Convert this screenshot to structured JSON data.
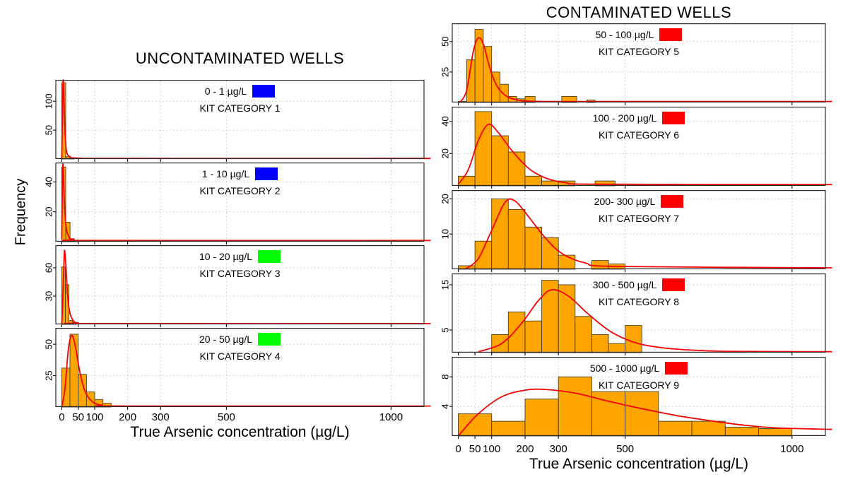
{
  "figure": {
    "left_column": {
      "title": "UNCONTAMINATED WELLS"
    },
    "right_column": {
      "title": "CONTAMINATED WELLS"
    },
    "x_axis_label": "True Arsenic concentration (µg/L)",
    "y_axis_label": "Frequency"
  },
  "colors": {
    "bar_fill": "#FFA500",
    "bar_border": "#454026",
    "curve": "#F40000",
    "grid": "#C3C3C3",
    "panel_border": "#2b2b2b",
    "axis_tick": "#1a1a1a",
    "legend_blue": "#0000FF",
    "legend_green": "#00FF00",
    "legend_red": "#FF0000"
  },
  "x_axis": {
    "ticks": [
      0,
      50,
      100,
      200,
      300,
      500,
      1000
    ]
  },
  "chart_data": [
    {
      "type": "histogram-with-density-curve",
      "column": "left",
      "panel": 1,
      "legend": {
        "range": "0 - 1 µg/L",
        "kit": "KIT CATEGORY 1",
        "color": "#0000FF"
      },
      "y_ticks": [
        50,
        100
      ],
      "ylim": 137,
      "bars": [
        [
          0,
          12,
          132
        ],
        [
          12,
          25,
          4
        ],
        [
          25,
          38,
          1
        ]
      ],
      "curve": [
        [
          0,
          0
        ],
        [
          3,
          110
        ],
        [
          5,
          134
        ],
        [
          9,
          60
        ],
        [
          14,
          15
        ],
        [
          25,
          4
        ],
        [
          50,
          1.5
        ],
        [
          200,
          1
        ],
        [
          1120,
          1
        ]
      ]
    },
    {
      "type": "histogram-with-density-curve",
      "column": "left",
      "panel": 2,
      "legend": {
        "range": "1 - 10 µg/L",
        "kit": "KIT CATEGORY 2",
        "color": "#0000FF"
      },
      "y_ticks": [
        20,
        40
      ],
      "ylim": 53,
      "bars": [
        [
          0,
          12,
          50
        ],
        [
          12,
          25,
          13
        ],
        [
          25,
          38,
          2
        ],
        [
          38,
          50,
          1
        ]
      ],
      "curve": [
        [
          0,
          2
        ],
        [
          2,
          38
        ],
        [
          4,
          52
        ],
        [
          7,
          32
        ],
        [
          12,
          12
        ],
        [
          20,
          4
        ],
        [
          35,
          1.5
        ],
        [
          100,
          0.8
        ],
        [
          1120,
          0.8
        ]
      ]
    },
    {
      "type": "histogram-with-density-curve",
      "column": "left",
      "panel": 3,
      "legend": {
        "range": "10 - 20 µg/L",
        "kit": "KIT CATEGORY 3",
        "color": "#00FF00"
      },
      "y_ticks": [
        30,
        60
      ],
      "ylim": 84,
      "bars": [
        [
          0,
          11,
          61
        ],
        [
          11,
          22,
          42
        ],
        [
          22,
          33,
          4
        ],
        [
          33,
          44,
          2
        ]
      ],
      "curve": [
        [
          0,
          0
        ],
        [
          3,
          25
        ],
        [
          7,
          70
        ],
        [
          9,
          78
        ],
        [
          13,
          60
        ],
        [
          18,
          30
        ],
        [
          25,
          12
        ],
        [
          35,
          4
        ],
        [
          50,
          1.5
        ],
        [
          100,
          0.8
        ],
        [
          1120,
          0.8
        ]
      ]
    },
    {
      "type": "histogram-with-density-curve",
      "column": "left",
      "panel": 4,
      "legend": {
        "range": "20 - 50 µg/L",
        "kit": "KIT CATEGORY 4",
        "color": "#00FF00"
      },
      "y_ticks": [
        25,
        50
      ],
      "ylim": 63,
      "bars": [
        [
          0,
          25,
          31
        ],
        [
          25,
          50,
          58
        ],
        [
          50,
          75,
          26
        ],
        [
          75,
          100,
          12
        ],
        [
          100,
          125,
          6
        ],
        [
          125,
          150,
          3
        ]
      ],
      "curve": [
        [
          0,
          0
        ],
        [
          10,
          15
        ],
        [
          20,
          46
        ],
        [
          30,
          57
        ],
        [
          40,
          50
        ],
        [
          55,
          28
        ],
        [
          70,
          13
        ],
        [
          90,
          5
        ],
        [
          120,
          1.5
        ],
        [
          200,
          0.8
        ],
        [
          1120,
          0.8
        ]
      ]
    },
    {
      "type": "histogram-with-density-curve",
      "column": "right",
      "panel": 5,
      "legend": {
        "range": "50 - 100 µg/L",
        "kit": "KIT CATEGORY 5",
        "color": "#FF0000"
      },
      "y_ticks": [
        25,
        50
      ],
      "ylim": 65,
      "bars": [
        [
          0,
          25,
          1
        ],
        [
          25,
          50,
          35
        ],
        [
          50,
          75,
          60
        ],
        [
          75,
          100,
          46
        ],
        [
          100,
          125,
          25
        ],
        [
          125,
          150,
          15
        ],
        [
          150,
          175,
          5
        ],
        [
          175,
          200,
          3
        ],
        [
          200,
          230,
          5
        ],
        [
          310,
          355,
          5
        ],
        [
          385,
          410,
          2
        ]
      ],
      "curve": [
        [
          5,
          0
        ],
        [
          25,
          10
        ],
        [
          45,
          42
        ],
        [
          60,
          53
        ],
        [
          75,
          48
        ],
        [
          95,
          28
        ],
        [
          115,
          14
        ],
        [
          140,
          6
        ],
        [
          170,
          2.5
        ],
        [
          220,
          1
        ],
        [
          400,
          0.8
        ],
        [
          1120,
          0.8
        ]
      ]
    },
    {
      "type": "histogram-with-density-curve",
      "column": "right",
      "panel": 6,
      "legend": {
        "range": "100 - 200 µg/L",
        "kit": "KIT CATEGORY 6",
        "color": "#FF0000"
      },
      "y_ticks": [
        20,
        40
      ],
      "ylim": 49,
      "bars": [
        [
          0,
          50,
          6
        ],
        [
          50,
          100,
          46
        ],
        [
          100,
          150,
          31
        ],
        [
          150,
          200,
          21
        ],
        [
          200,
          250,
          6
        ],
        [
          250,
          300,
          3
        ],
        [
          300,
          350,
          3
        ],
        [
          410,
          470,
          3
        ]
      ],
      "curve": [
        [
          0,
          1
        ],
        [
          30,
          10
        ],
        [
          60,
          28
        ],
        [
          90,
          38
        ],
        [
          120,
          33
        ],
        [
          160,
          22
        ],
        [
          210,
          11
        ],
        [
          260,
          5
        ],
        [
          320,
          2
        ],
        [
          420,
          1
        ],
        [
          1120,
          0.8
        ]
      ]
    },
    {
      "type": "histogram-with-density-curve",
      "column": "right",
      "panel": 7,
      "legend": {
        "range": "200- 300 µg/L",
        "kit": "KIT CATEGORY 7",
        "color": "#FF0000"
      },
      "y_ticks": [
        10,
        20
      ],
      "ylim": 22.5,
      "bars": [
        [
          0,
          50,
          1
        ],
        [
          50,
          100,
          8
        ],
        [
          100,
          150,
          20
        ],
        [
          150,
          200,
          17
        ],
        [
          200,
          250,
          12
        ],
        [
          250,
          300,
          9
        ],
        [
          300,
          350,
          4
        ],
        [
          400,
          450,
          2.5
        ],
        [
          450,
          500,
          1.5
        ]
      ],
      "curve": [
        [
          20,
          0
        ],
        [
          60,
          3
        ],
        [
          100,
          11
        ],
        [
          140,
          19
        ],
        [
          170,
          19.4
        ],
        [
          210,
          15
        ],
        [
          260,
          9
        ],
        [
          310,
          4.5
        ],
        [
          380,
          1.8
        ],
        [
          480,
          0.8
        ],
        [
          1120,
          0.4
        ]
      ]
    },
    {
      "type": "histogram-with-density-curve",
      "column": "right",
      "panel": 8,
      "legend": {
        "range": "300 - 500 µg/L",
        "kit": "KIT CATEGORY 8",
        "color": "#FF0000"
      },
      "y_ticks": [
        5,
        15
      ],
      "ylim": 17.5,
      "bars": [
        [
          100,
          150,
          4
        ],
        [
          150,
          200,
          9
        ],
        [
          200,
          250,
          7
        ],
        [
          250,
          300,
          16
        ],
        [
          300,
          350,
          15
        ],
        [
          350,
          400,
          8
        ],
        [
          400,
          450,
          4
        ],
        [
          450,
          500,
          2
        ],
        [
          500,
          550,
          6
        ]
      ],
      "curve": [
        [
          60,
          0.2
        ],
        [
          130,
          2
        ],
        [
          190,
          6.5
        ],
        [
          240,
          11.5
        ],
        [
          280,
          13.9
        ],
        [
          330,
          12.5
        ],
        [
          390,
          8.5
        ],
        [
          460,
          4.5
        ],
        [
          540,
          2
        ],
        [
          650,
          0.8
        ],
        [
          800,
          0.3
        ],
        [
          1120,
          0.2
        ]
      ]
    },
    {
      "type": "histogram-with-density-curve",
      "column": "right",
      "panel": 9,
      "legend": {
        "range": "500 - 1000 µg/L",
        "kit": "KIT CATEGORY 9",
        "color": "#FF0000"
      },
      "y_ticks": [
        4,
        8
      ],
      "ylim": 10.7,
      "bars": [
        [
          0,
          100,
          3
        ],
        [
          100,
          200,
          2
        ],
        [
          200,
          300,
          5
        ],
        [
          300,
          400,
          8
        ],
        [
          400,
          500,
          6
        ],
        [
          500,
          600,
          6
        ],
        [
          600,
          700,
          2
        ],
        [
          700,
          800,
          2
        ],
        [
          800,
          900,
          1.2
        ],
        [
          900,
          1000,
          1
        ]
      ],
      "curve": [
        [
          0,
          0
        ],
        [
          60,
          3
        ],
        [
          130,
          5.3
        ],
        [
          200,
          6.2
        ],
        [
          260,
          6.3
        ],
        [
          350,
          5.8
        ],
        [
          450,
          4.7
        ],
        [
          550,
          3.7
        ],
        [
          650,
          2.8
        ],
        [
          750,
          2.1
        ],
        [
          850,
          1.5
        ],
        [
          950,
          1.1
        ],
        [
          1120,
          0.9
        ]
      ]
    }
  ]
}
